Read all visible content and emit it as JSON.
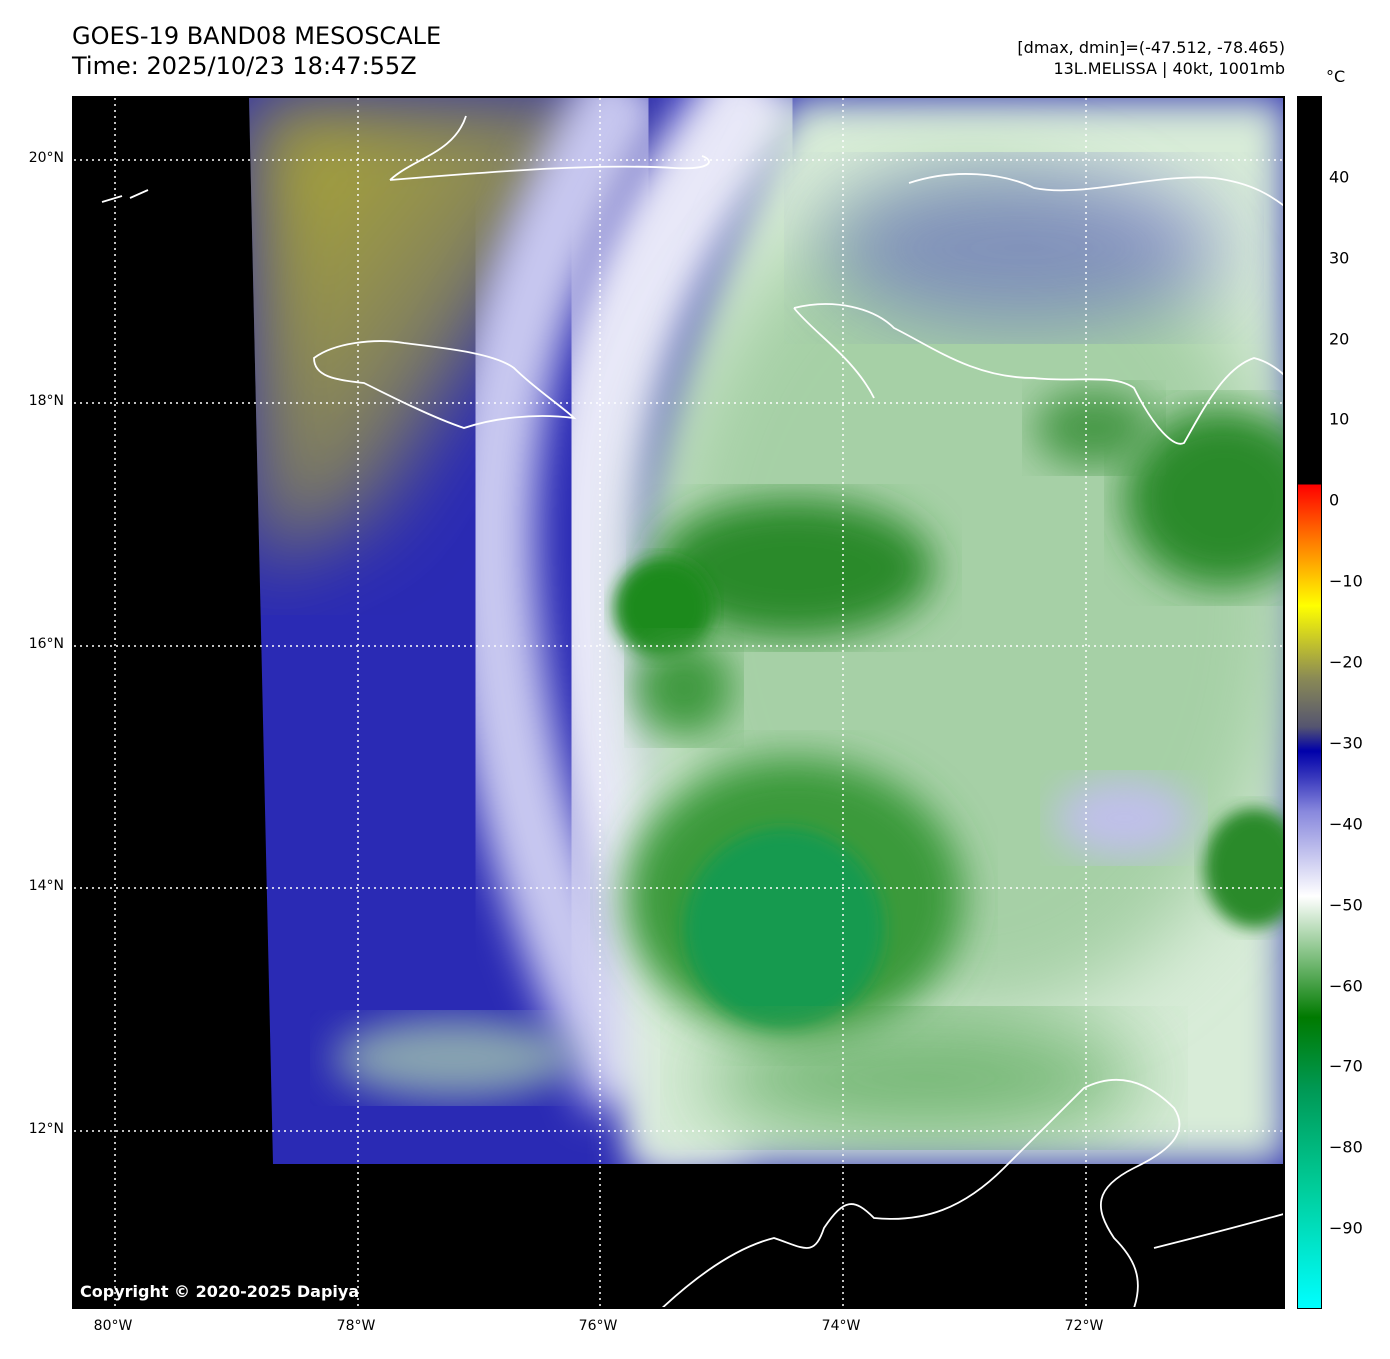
{
  "header": {
    "title": "GOES-19 BAND08 MESOSCALE",
    "time": "Time: 2025/10/23 18:47:55Z",
    "range": "[dmax, dmin]=(-47.512, -78.465)",
    "storm": "13L.MELISSA | 40kt, 1001mb"
  },
  "axes": {
    "lat_labels": [
      "20°N",
      "18°N",
      "16°N",
      "14°N",
      "12°N"
    ],
    "lon_labels": [
      "80°W",
      "78°W",
      "76°W",
      "74°W",
      "72°W"
    ]
  },
  "colorbar": {
    "unit": "°C",
    "ticks": [
      "40",
      "30",
      "20",
      "10",
      "0",
      "−10",
      "−20",
      "−30",
      "−40",
      "−50",
      "−60",
      "−70",
      "−80",
      "−90"
    ],
    "range": [
      -100,
      50
    ]
  },
  "copyright": "Copyright © 2020-2025 Dapiya"
}
